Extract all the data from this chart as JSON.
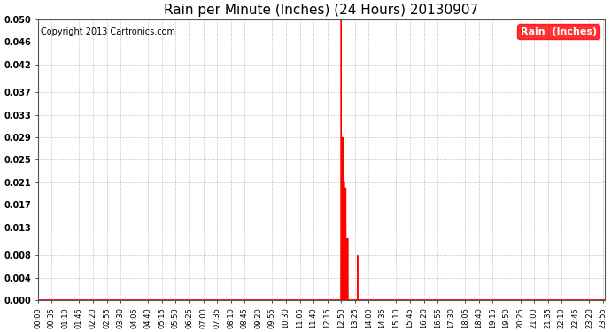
{
  "title": "Rain per Minute (Inches) (24 Hours) 20130907",
  "copyright": "Copyright 2013 Cartronics.com",
  "legend_label": "Rain  (Inches)",
  "bg_color": "#ffffff",
  "plot_bg_color": "#ffffff",
  "line_color": "#ff0000",
  "grid_color": "#aaaaaa",
  "ylim": [
    0.0,
    0.05
  ],
  "yticks": [
    0.0,
    0.004,
    0.008,
    0.013,
    0.017,
    0.021,
    0.025,
    0.029,
    0.033,
    0.037,
    0.042,
    0.046,
    0.05
  ],
  "ytick_labels": [
    "0.000",
    "0.004",
    "0.008",
    "0.013",
    "0.017",
    "0.021",
    "0.025",
    "0.029",
    "0.033",
    "0.037",
    "0.042",
    "0.046",
    "0.050"
  ],
  "xtick_interval_minutes": 35,
  "total_minutes": 1440,
  "spikes": [
    {
      "minute": 770,
      "value": 0.05
    },
    {
      "minute": 774,
      "value": 0.029
    },
    {
      "minute": 778,
      "value": 0.021
    },
    {
      "minute": 780,
      "value": 0.02
    },
    {
      "minute": 782,
      "value": 0.02
    },
    {
      "minute": 785,
      "value": 0.011
    },
    {
      "minute": 787,
      "value": 0.011
    },
    {
      "minute": 812,
      "value": 0.008
    }
  ],
  "title_fontsize": 11,
  "tick_fontsize": 7,
  "copyright_fontsize": 7,
  "legend_fontsize": 8
}
